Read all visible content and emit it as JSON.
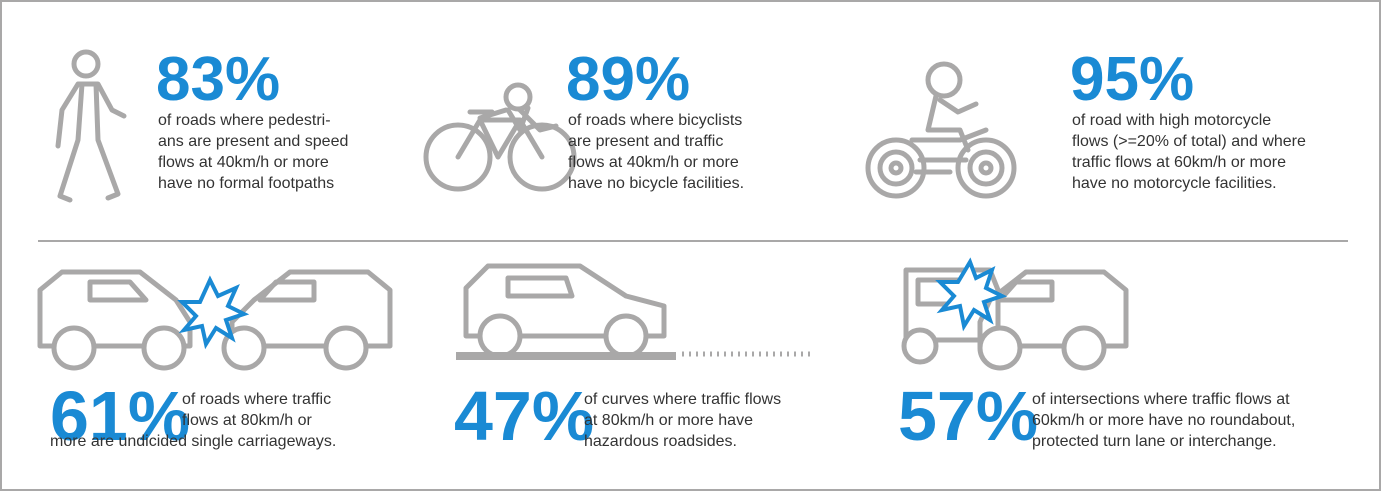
{
  "items": [
    {
      "stat": "83%",
      "lines": [
        "of roads where pedestri-",
        "ans are present and speed",
        "flows at 40km/h or more",
        "have no formal footpaths"
      ]
    },
    {
      "stat": "89%",
      "lines": [
        "of roads where bicyclists",
        "are present and traffic",
        "flows at 40km/h or more",
        "have no bicycle facilities."
      ]
    },
    {
      "stat": "95%",
      "lines": [
        "of road with high motorcycle",
        "flows (>=20% of total) and where",
        "traffic flows at 60km/h or more",
        "have no motorcycle facilities."
      ]
    },
    {
      "stat": "61%",
      "lines": [
        "of roads where traffic",
        "flows at 80km/h or",
        "more are undicided single carriageways."
      ]
    },
    {
      "stat": "47%",
      "lines": [
        "of curves where traffic flows",
        "at 80km/h or more have",
        "hazardous roadsides."
      ]
    },
    {
      "stat": "57%",
      "lines": [
        "of intersections where traffic flows at",
        "60km/h or more have no roundabout,",
        "protected turn lane or interchange."
      ]
    }
  ]
}
